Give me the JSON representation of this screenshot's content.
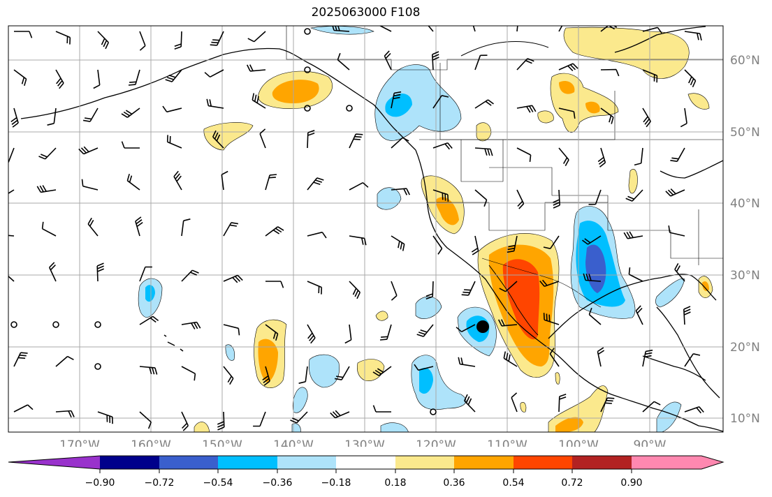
{
  "title": "2025063000 F108",
  "map": {
    "lat_labels": [
      "60°N",
      "50°N",
      "40°N",
      "30°N",
      "20°N",
      "10°N"
    ],
    "lon_labels": [
      "170°W",
      "160°W",
      "150°W",
      "140°W",
      "130°W",
      "120°W",
      "110°W",
      "100°W",
      "90°W"
    ],
    "gridlines": true,
    "markers": [
      {
        "type": "storm-center",
        "lon": -113.5,
        "lat": 22.5
      }
    ]
  },
  "colorbar": {
    "tick_labels": [
      "−0.90",
      "−0.72",
      "−0.54",
      "−0.36",
      "−0.18",
      "0.18",
      "0.36",
      "0.54",
      "0.72",
      "0.90"
    ],
    "colors": [
      "#9932cc",
      "#00008b",
      "#3a5fcd",
      "#00bfff",
      "#aee3fa",
      "#ffffff",
      "#fbe98d",
      "#ffa500",
      "#ff4500",
      "#b22222",
      "#ff88b0"
    ],
    "extend": "both"
  }
}
